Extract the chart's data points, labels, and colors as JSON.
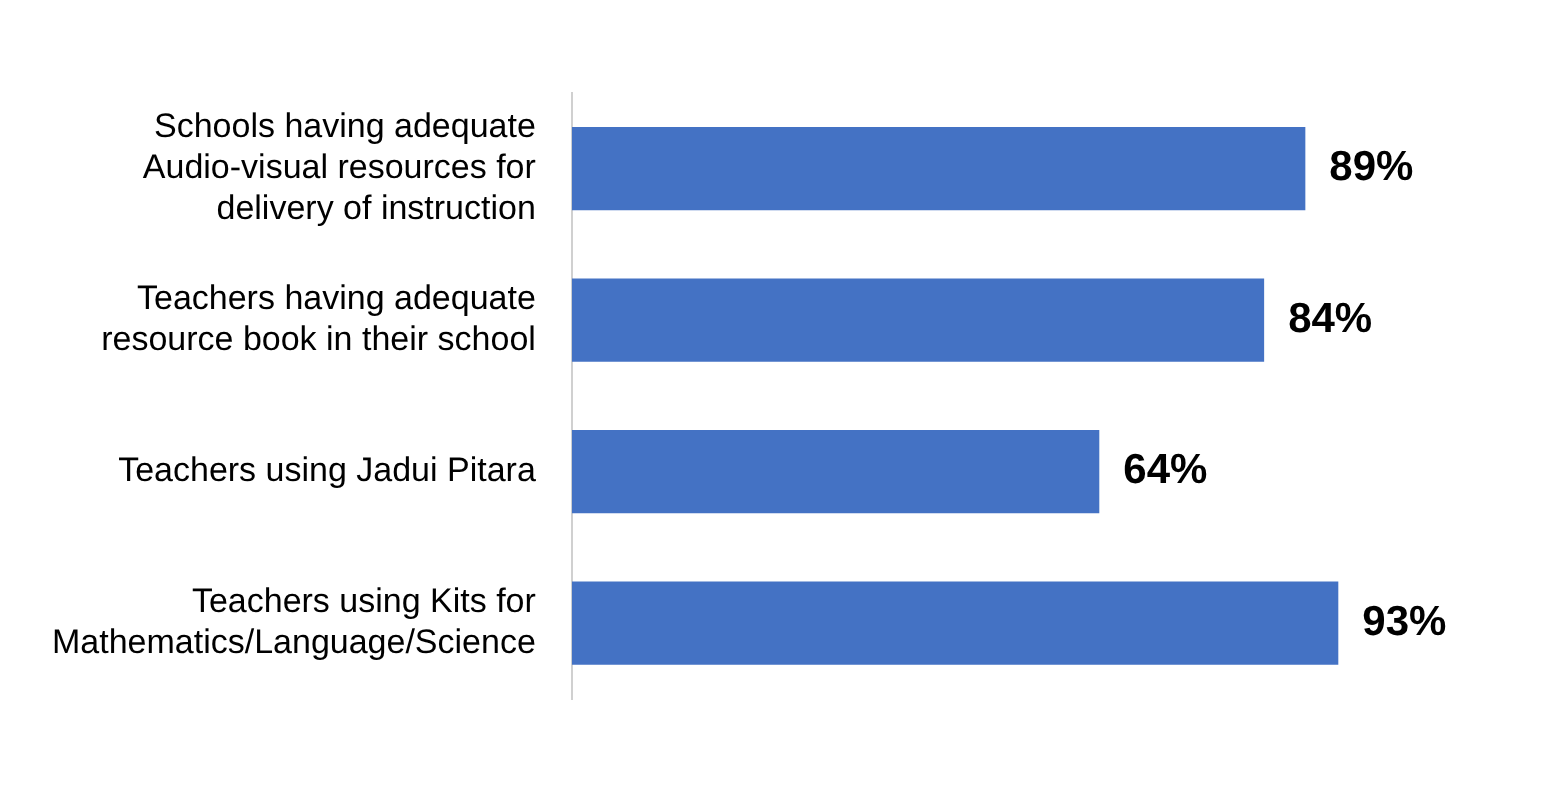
{
  "chart_data": {
    "type": "bar",
    "orientation": "horizontal",
    "categories": [
      "Schools having adequate Audio-visual resources for delivery of instruction",
      "Teachers having adequate resource book in their school",
      "Teachers using Jadui Pitara",
      "Teachers using Kits for Mathematics/Language/Science"
    ],
    "values": [
      89,
      84,
      64,
      93
    ],
    "value_labels": [
      "89%",
      "84%",
      "64%",
      "93%"
    ],
    "color": "#4472c4",
    "grid": false,
    "legend": false
  }
}
